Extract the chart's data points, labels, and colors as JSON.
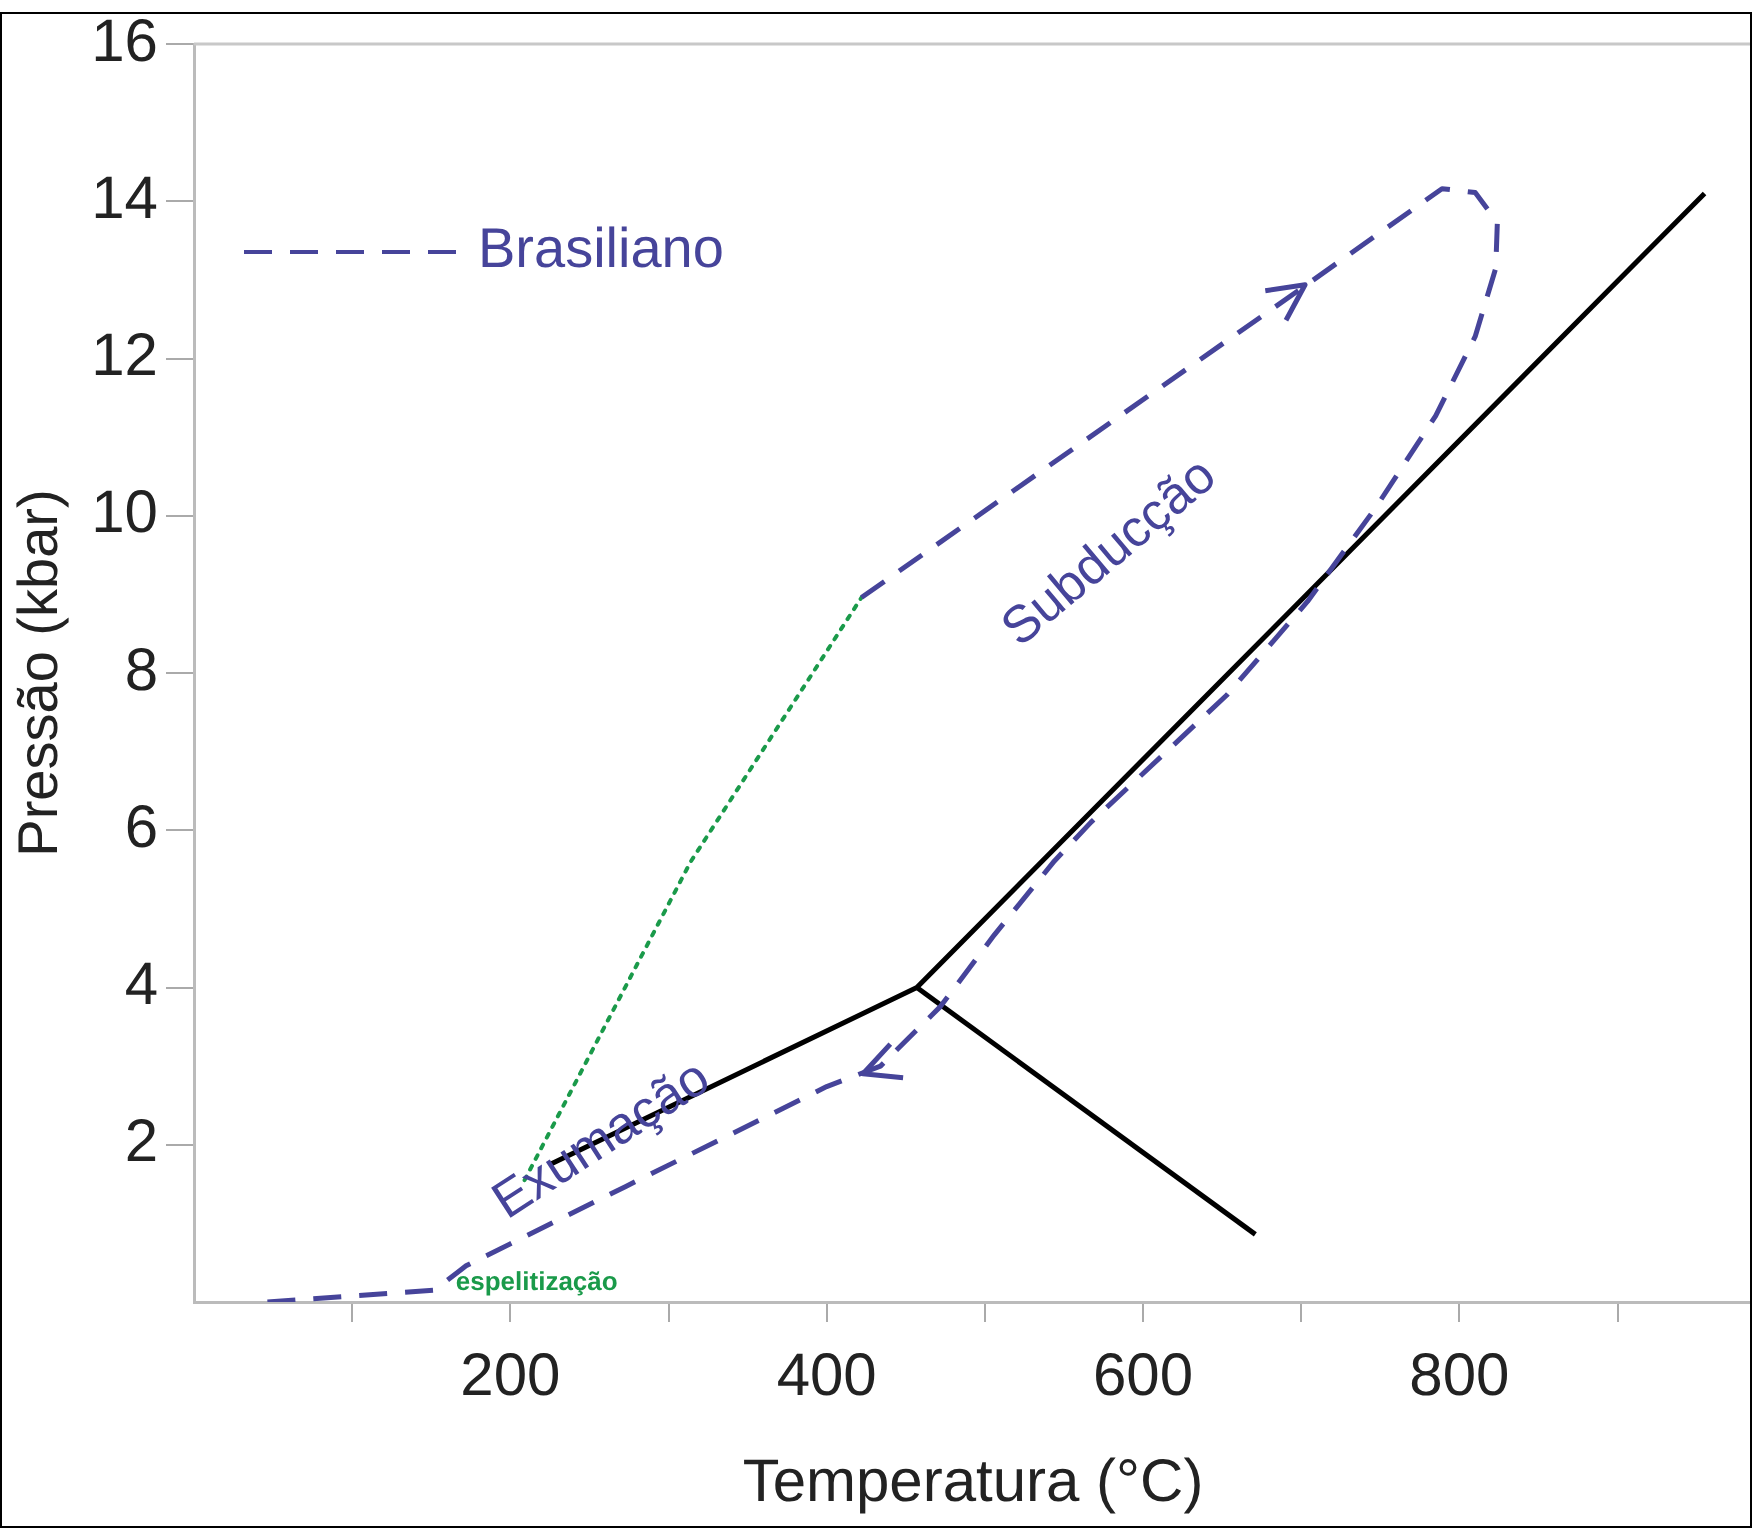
{
  "chart_data": {
    "type": "line",
    "xlabel": "Temperatura (°C)",
    "ylabel": "Pressão (kbar)",
    "xlim": [
      0,
      985
    ],
    "ylim": [
      0,
      16
    ],
    "xticks": [
      {
        "value": 100,
        "label": null
      },
      200,
      {
        "value": 300,
        "label": null
      },
      400,
      {
        "value": 500,
        "label": null
      },
      600,
      {
        "value": 700,
        "label": null
      },
      800,
      {
        "value": 900,
        "label": null
      }
    ],
    "yticks": [
      2,
      4,
      6,
      8,
      10,
      12,
      14,
      16
    ],
    "grid": false,
    "legend": "top left",
    "marker": "none",
    "series": [
      {
        "name": "Brasiliano",
        "color": "#46449a",
        "line_style": "dashed",
        "x": [
          422,
          700,
          789,
          810,
          824,
          823,
          810,
          785,
          747,
          704,
          653,
          567,
          544,
          506,
          472,
          434,
          400,
          273,
          172,
          152,
          46
        ],
        "values": [
          8.96,
          12.89,
          14.16,
          14.11,
          13.73,
          13.15,
          12.28,
          11.27,
          10.1,
          8.91,
          7.72,
          6.1,
          5.61,
          4.67,
          3.76,
          3.0,
          2.74,
          1.47,
          0.46,
          0.15,
          0
        ]
      },
      {
        "color": "#1a9a4a",
        "line_style": "dotted",
        "x": [
          209,
          314,
          422
        ],
        "values": [
          1.55,
          5.6,
          8.96
        ]
      },
      {
        "color": "#000000",
        "line_style": "solid",
        "x": [
          225,
          457,
          955
        ],
        "values": [
          1.75,
          4.0,
          14.1
        ]
      },
      {
        "color": "#000000",
        "line_style": "solid",
        "x": [
          457,
          671
        ],
        "values": [
          4.0,
          0.86
        ]
      }
    ],
    "annotations": [
      "Subducção",
      "Exumação",
      "espelitização"
    ]
  }
}
